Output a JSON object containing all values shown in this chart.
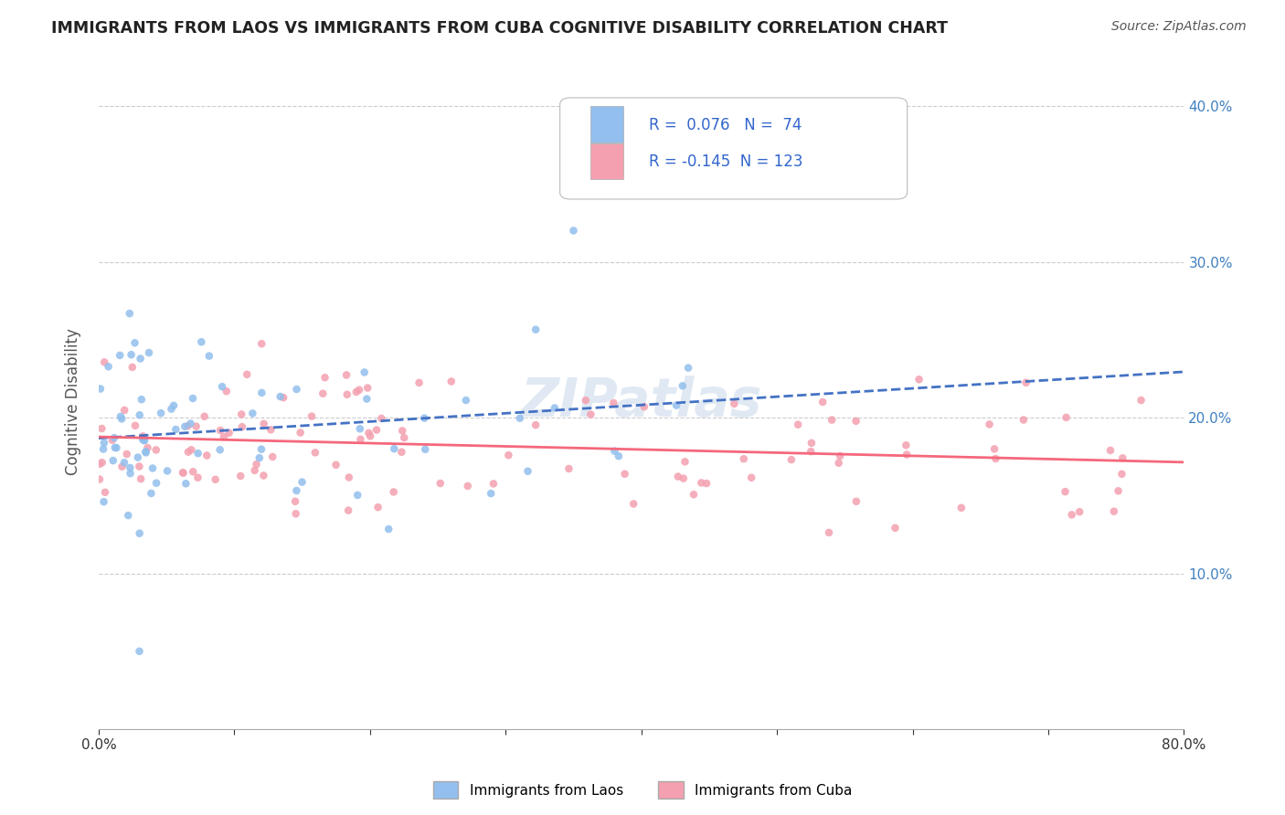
{
  "title": "IMMIGRANTS FROM LAOS VS IMMIGRANTS FROM CUBA COGNITIVE DISABILITY CORRELATION CHART",
  "source": "Source: ZipAtlas.com",
  "xlabel": "",
  "ylabel": "Cognitive Disability",
  "r_laos": 0.076,
  "n_laos": 74,
  "r_cuba": -0.145,
  "n_cuba": 123,
  "laos_color": "#92bfed",
  "cuba_color": "#f4a0b0",
  "laos_line_color": "#4472c4",
  "cuba_line_color": "#f4687c",
  "background_color": "#ffffff",
  "grid_color": "#cccccc",
  "watermark": "ZIPatlas",
  "xlim": [
    0.0,
    0.8
  ],
  "ylim": [
    0.0,
    0.42
  ],
  "y_ticks": [
    0.0,
    0.1,
    0.2,
    0.3,
    0.4
  ],
  "y_tick_labels_right": [
    "",
    "10.0%",
    "20.0%",
    "30.0%",
    "40.0%"
  ]
}
